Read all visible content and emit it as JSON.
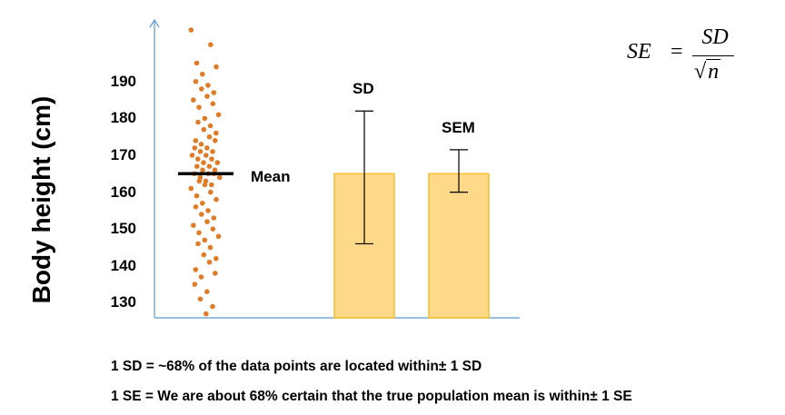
{
  "chart_data": {
    "type": "bar",
    "ylabel": "Body height (cm)",
    "ylim": [
      125,
      205
    ],
    "yticks": [
      130,
      140,
      150,
      160,
      170,
      180,
      190
    ],
    "mean": 165,
    "mean_label": "Mean",
    "categories": [
      "SD",
      "SEM"
    ],
    "values": [
      165,
      165
    ],
    "error_bars": [
      {
        "name": "SD",
        "low": 146,
        "high": 182
      },
      {
        "name": "SEM",
        "low": 160,
        "high": 171.5
      }
    ],
    "points": [
      204,
      200,
      195,
      194,
      192,
      190,
      189,
      188,
      187,
      186,
      185,
      184,
      183,
      181,
      180,
      179,
      178,
      177,
      176,
      175,
      174,
      174,
      173,
      172,
      172,
      171,
      171,
      170,
      170,
      169,
      169,
      168,
      168,
      167,
      167,
      166,
      166,
      165,
      165,
      165,
      164,
      164,
      163,
      163,
      162,
      162,
      161,
      160,
      159,
      158,
      157,
      156,
      155,
      154,
      153,
      152,
      151,
      150,
      149,
      148,
      147,
      146,
      145,
      143,
      142,
      141,
      139,
      138,
      137,
      135,
      133,
      131,
      129,
      127
    ],
    "colors": {
      "points": "#e07b28",
      "bar_fill": "#ffd98a",
      "bar_edge": "#f2c029",
      "axis": "#5b9bd5"
    }
  },
  "annotations": {
    "formula_lhs": "SE",
    "formula_eq": "=",
    "formula_num": "SD",
    "formula_den": "n",
    "note1": "1 SD = ~68% of the data points are located within± 1 SD",
    "note2": "1 SE = We are about 68% certain that the true population mean is within± 1 SE"
  }
}
